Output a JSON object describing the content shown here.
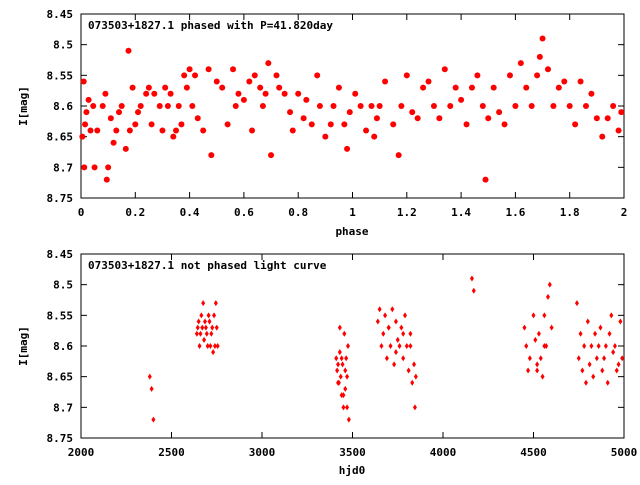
{
  "colors": {
    "points": "#ff0000",
    "axes": "#000000",
    "background": "#ffffff"
  },
  "chart_data": [
    {
      "type": "scatter",
      "title": "073503+1827.1 phased with P=41.820day",
      "xlabel": "phase",
      "ylabel": "I[mag]",
      "xlim": [
        0,
        2
      ],
      "ylim": [
        8.45,
        8.75
      ],
      "y_inverted": true,
      "x_ticks": [
        "0",
        "0.2",
        "0.4",
        "0.6",
        "0.8",
        "1",
        "1.2",
        "1.4",
        "1.6",
        "1.8",
        "2"
      ],
      "y_ticks": [
        "8.45",
        "8.5",
        "8.55",
        "8.6",
        "8.65",
        "8.7",
        "8.75"
      ],
      "grid": false,
      "marker": "filled-circle",
      "series": [
        {
          "x": [
            0.005,
            0.01,
            0.012,
            0.015,
            0.02,
            0.028,
            0.035,
            0.045,
            0.05,
            0.06,
            0.08,
            0.09,
            0.095,
            0.1,
            0.11,
            0.12,
            0.13,
            0.14,
            0.15,
            0.165,
            0.175,
            0.18,
            0.19,
            0.2,
            0.21,
            0.22,
            0.24,
            0.25,
            0.26,
            0.27,
            0.29,
            0.3,
            0.31,
            0.32,
            0.33,
            0.34,
            0.35,
            0.36,
            0.37,
            0.38,
            0.39,
            0.4,
            0.41,
            0.42,
            0.43,
            0.45,
            0.47,
            0.48,
            0.5,
            0.52,
            0.54,
            0.56,
            0.57,
            0.58,
            0.6,
            0.62,
            0.63,
            0.64,
            0.66,
            0.67,
            0.68,
            0.69,
            0.7,
            0.72,
            0.73,
            0.75,
            0.77,
            0.78,
            0.8,
            0.82,
            0.83,
            0.85,
            0.87,
            0.88,
            0.9,
            0.92,
            0.93,
            0.95,
            0.97,
            0.98,
            0.99,
            1.01,
            1.03,
            1.05,
            1.07,
            1.08,
            1.09,
            1.1,
            1.12,
            1.15,
            1.17,
            1.18,
            1.2,
            1.22,
            1.24,
            1.26,
            1.28,
            1.3,
            1.32,
            1.34,
            1.36,
            1.38,
            1.4,
            1.42,
            1.44,
            1.46,
            1.48,
            1.49,
            1.5,
            1.52,
            1.54,
            1.56,
            1.58,
            1.6,
            1.62,
            1.64,
            1.66,
            1.68,
            1.69,
            1.7,
            1.72,
            1.74,
            1.76,
            1.78,
            1.8,
            1.82,
            1.84,
            1.86,
            1.88,
            1.9,
            1.92,
            1.94,
            1.96,
            1.98,
            1.99
          ],
          "y": [
            8.65,
            8.56,
            8.7,
            8.63,
            8.61,
            8.59,
            8.64,
            8.6,
            8.7,
            8.64,
            8.6,
            8.58,
            8.72,
            8.7,
            8.62,
            8.66,
            8.64,
            8.61,
            8.6,
            8.67,
            8.51,
            8.64,
            8.57,
            8.63,
            8.61,
            8.6,
            8.58,
            8.57,
            8.63,
            8.58,
            8.6,
            8.64,
            8.57,
            8.6,
            8.58,
            8.65,
            8.64,
            8.6,
            8.63,
            8.55,
            8.57,
            8.54,
            8.6,
            8.55,
            8.62,
            8.64,
            8.54,
            8.68,
            8.56,
            8.57,
            8.63,
            8.54,
            8.6,
            8.58,
            8.59,
            8.56,
            8.64,
            8.55,
            8.57,
            8.6,
            8.58,
            8.53,
            8.68,
            8.55,
            8.57,
            8.58,
            8.61,
            8.64,
            8.58,
            8.62,
            8.59,
            8.63,
            8.55,
            8.6,
            8.65,
            8.63,
            8.6,
            8.57,
            8.63,
            8.67,
            8.61,
            8.58,
            8.6,
            8.64,
            8.6,
            8.65,
            8.62,
            8.6,
            8.56,
            8.63,
            8.68,
            8.6,
            8.55,
            8.61,
            8.62,
            8.57,
            8.56,
            8.6,
            8.62,
            8.54,
            8.6,
            8.57,
            8.59,
            8.63,
            8.57,
            8.55,
            8.6,
            8.72,
            8.62,
            8.57,
            8.61,
            8.63,
            8.55,
            8.6,
            8.53,
            8.57,
            8.6,
            8.55,
            8.52,
            8.49,
            8.54,
            8.6,
            8.57,
            8.56,
            8.6,
            8.63,
            8.56,
            8.6,
            8.58,
            8.62,
            8.65,
            8.62,
            8.6,
            8.64,
            8.61
          ]
        }
      ]
    },
    {
      "type": "scatter",
      "title": "073503+1827.1 not phased light curve",
      "xlabel": "hjd0",
      "ylabel": "I[mag]",
      "xlim": [
        2000,
        5000
      ],
      "ylim": [
        8.45,
        8.75
      ],
      "y_inverted": true,
      "x_ticks": [
        "2000",
        "2500",
        "3000",
        "3500",
        "4000",
        "4500",
        "5000"
      ],
      "y_ticks": [
        "8.45",
        "8.5",
        "8.55",
        "8.6",
        "8.65",
        "8.7",
        "8.75"
      ],
      "grid": false,
      "marker": "diamond",
      "series": [
        {
          "x": [
            2380,
            2390,
            2400,
            2640,
            2645,
            2650,
            2655,
            2660,
            2665,
            2670,
            2675,
            2680,
            2685,
            2690,
            2695,
            2700,
            2705,
            2710,
            2715,
            2720,
            2725,
            2730,
            2735,
            2740,
            2745,
            2750,
            2755,
            3410,
            3415,
            3420,
            3425,
            3430,
            3435,
            3440,
            3445,
            3450,
            3455,
            3460,
            3465,
            3470,
            3475,
            3480,
            3420,
            3430,
            3440,
            3450,
            3460,
            3470,
            3640,
            3650,
            3660,
            3670,
            3680,
            3690,
            3700,
            3710,
            3720,
            3730,
            3740,
            3750,
            3760,
            3770,
            3780,
            3790,
            3800,
            3810,
            3820,
            3830,
            3840,
            3845,
            3850,
            3700,
            3740,
            3780,
            3820,
            4160,
            4170,
            4450,
            4460,
            4470,
            4480,
            4500,
            4510,
            4520,
            4530,
            4540,
            4550,
            4560,
            4570,
            4580,
            4590,
            4600,
            4520,
            4560,
            4740,
            4750,
            4760,
            4770,
            4780,
            4790,
            4800,
            4810,
            4820,
            4830,
            4840,
            4850,
            4860,
            4870,
            4880,
            4890,
            4900,
            4910,
            4920,
            4930,
            4940,
            4950,
            4960,
            4970,
            4980,
            4990
          ],
          "y": [
            8.65,
            8.67,
            8.72,
            8.58,
            8.57,
            8.56,
            8.6,
            8.58,
            8.55,
            8.57,
            8.53,
            8.59,
            8.56,
            8.57,
            8.58,
            8.6,
            8.55,
            8.56,
            8.6,
            8.58,
            8.57,
            8.61,
            8.55,
            8.6,
            8.53,
            8.57,
            8.6,
            8.62,
            8.64,
            8.63,
            8.66,
            8.61,
            8.65,
            8.68,
            8.63,
            8.7,
            8.58,
            8.67,
            8.62,
            8.65,
            8.6,
            8.72,
            8.66,
            8.57,
            8.62,
            8.68,
            8.64,
            8.7,
            8.56,
            8.54,
            8.6,
            8.58,
            8.55,
            8.62,
            8.57,
            8.6,
            8.54,
            8.63,
            8.56,
            8.59,
            8.6,
            8.57,
            8.62,
            8.55,
            8.6,
            8.64,
            8.58,
            8.66,
            8.63,
            8.7,
            8.65,
            8.57,
            8.61,
            8.58,
            8.6,
            8.49,
            8.51,
            8.57,
            8.6,
            8.64,
            8.62,
            8.55,
            8.59,
            8.63,
            8.58,
            8.62,
            8.65,
            8.55,
            8.6,
            8.52,
            8.5,
            8.57,
            8.64,
            8.6,
            8.53,
            8.62,
            8.58,
            8.64,
            8.6,
            8.66,
            8.56,
            8.63,
            8.6,
            8.65,
            8.58,
            8.62,
            8.6,
            8.57,
            8.64,
            8.62,
            8.6,
            8.66,
            8.58,
            8.55,
            8.61,
            8.6,
            8.64,
            8.63,
            8.56,
            8.62
          ]
        }
      ]
    }
  ]
}
